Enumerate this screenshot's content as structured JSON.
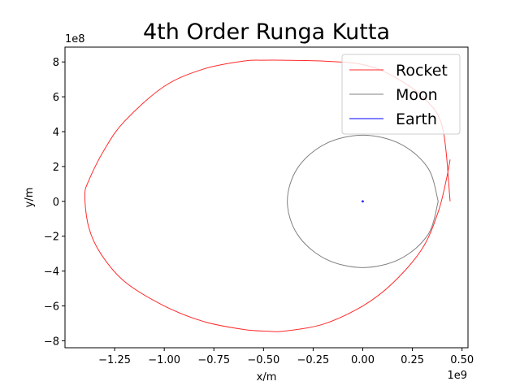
{
  "chart_data": {
    "type": "line",
    "title": "4th Order Runga Kutta",
    "xlabel": "x/m",
    "ylabel": "y/m",
    "x_offset_text": "1e9",
    "y_offset_text": "1e8",
    "xlim": [
      -1500000000.0,
      530000000.0
    ],
    "ylim": [
      -840000000.0,
      885000000.0
    ],
    "x_ticks": [
      {
        "value": -1250000000.0,
        "label": "−1.25"
      },
      {
        "value": -1000000000.0,
        "label": "−1.00"
      },
      {
        "value": -750000000.0,
        "label": "−0.75"
      },
      {
        "value": -500000000.0,
        "label": "−0.50"
      },
      {
        "value": -250000000.0,
        "label": "−0.25"
      },
      {
        "value": 0.0,
        "label": "0.00"
      },
      {
        "value": 250000000.0,
        "label": "0.25"
      },
      {
        "value": 500000000.0,
        "label": "0.50"
      }
    ],
    "y_ticks": [
      {
        "value": -800000000.0,
        "label": "−8"
      },
      {
        "value": -600000000.0,
        "label": "−6"
      },
      {
        "value": -400000000.0,
        "label": "−4"
      },
      {
        "value": -200000000.0,
        "label": "−2"
      },
      {
        "value": 0,
        "label": "0"
      },
      {
        "value": 200000000.0,
        "label": "2"
      },
      {
        "value": 400000000.0,
        "label": "4"
      },
      {
        "value": 600000000.0,
        "label": "6"
      },
      {
        "value": 800000000.0,
        "label": "8"
      }
    ],
    "legend_position": "upper-right",
    "grid": false,
    "series": [
      {
        "name": "Rocket",
        "color": "#ff2a2a",
        "x": [
          440000000.0,
          400000000.0,
          300000000.0,
          150000000.0,
          0.0,
          -200000000.0,
          -400000000.0,
          -500000000.0,
          -600000000.0,
          -800000000.0,
          -1000000000.0,
          -1200000000.0,
          -1300000000.0,
          -1380000000.0,
          -1400000000.0,
          -1380000000.0,
          -1320000000.0,
          -1200000000.0,
          -1000000000.0,
          -800000000.0,
          -600000000.0,
          -480000000.0,
          -400000000.0,
          -200000000.0,
          0.0,
          150000000.0,
          300000000.0,
          380000000.0,
          420000000.0,
          440000000.0
        ],
        "y": [
          0.0,
          430000000.0,
          600000000.0,
          720000000.0,
          785000000.0,
          805000000.0,
          810000000.0,
          810000000.0,
          805000000.0,
          760000000.0,
          660000000.0,
          460000000.0,
          300000000.0,
          120000000.0,
          30000000.0,
          -150000000.0,
          -300000000.0,
          -460000000.0,
          -600000000.0,
          -690000000.0,
          -735000000.0,
          -745000000.0,
          -745000000.0,
          -705000000.0,
          -600000000.0,
          -470000000.0,
          -270000000.0,
          -60000000.0,
          120000000.0,
          240000000.0
        ]
      },
      {
        "name": "Moon",
        "color": "#808080",
        "x": [
          380000000.0,
          329000000.0,
          190000000.0,
          0.0,
          -190000000.0,
          -329000000.0,
          -380000000.0,
          -329000000.0,
          -190000000.0,
          0.0,
          190000000.0,
          329000000.0,
          380000000.0
        ],
        "y": [
          0.0,
          190000000.0,
          329000000.0,
          380000000.0,
          329000000.0,
          190000000.0,
          0.0,
          -190000000.0,
          -329000000.0,
          -380000000.0,
          -329000000.0,
          -190000000.0,
          0.0
        ]
      },
      {
        "name": "Earth",
        "color": "#0000ff",
        "x": [
          4600000.0,
          0.0,
          -4600000.0,
          0.0,
          4600000.0
        ],
        "y": [
          0.0,
          4600000.0,
          0.0,
          -4600000.0,
          0.0
        ]
      }
    ]
  }
}
